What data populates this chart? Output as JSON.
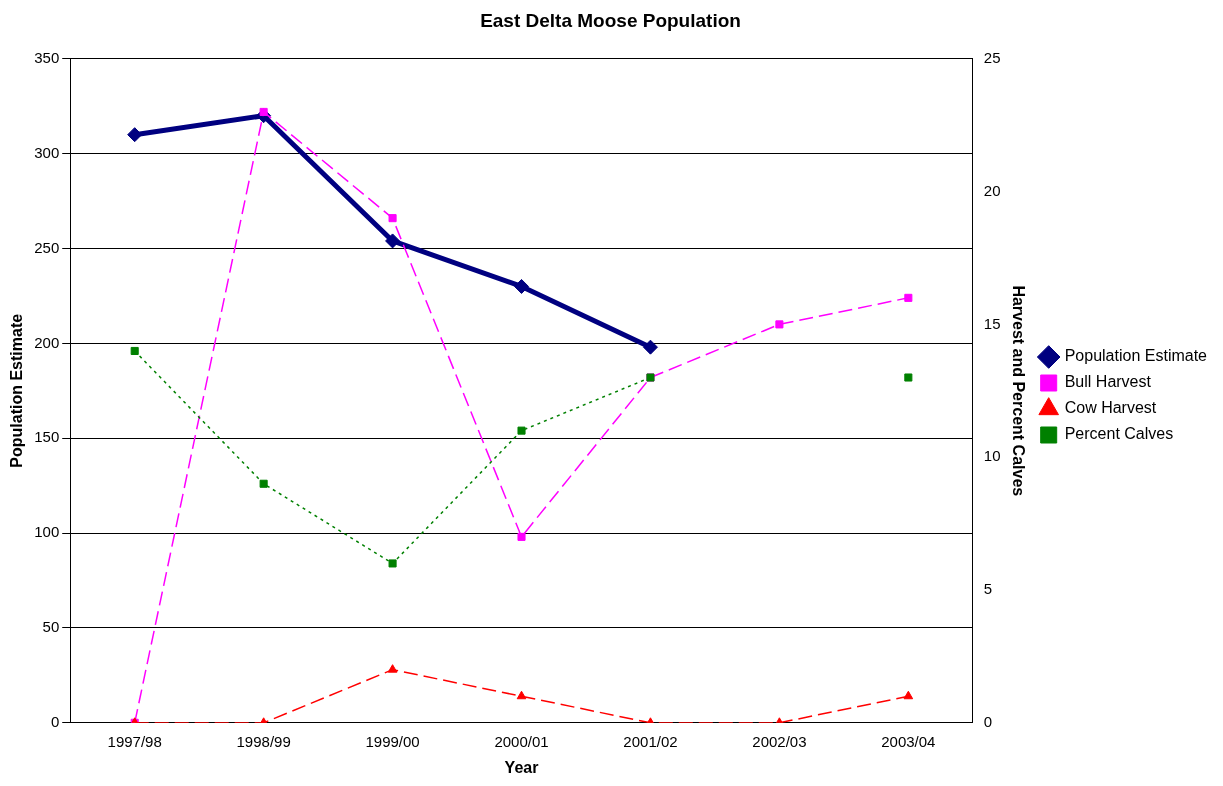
{
  "chart_data": {
    "type": "line",
    "title": "East Delta Moose Population",
    "xlabel": "Year",
    "ylabel": "Population Estimate",
    "y2label": "Harvest and Percent Calves",
    "categories": [
      "1997/98",
      "1998/99",
      "1999/00",
      "2000/01",
      "2001/02",
      "2002/03",
      "2003/04"
    ],
    "series": [
      {
        "name": "Population Estimate",
        "color": "#000080",
        "values": [
          310,
          320,
          254,
          230,
          198,
          null,
          null
        ],
        "marker": "diamond",
        "line_style": "solid"
      },
      {
        "name": "Bull Harvest",
        "color": "#ff00ff",
        "values": [
          0,
          23,
          19,
          7,
          13,
          15,
          16
        ],
        "axis": "y2",
        "marker": "square",
        "line_style": "dashed"
      },
      {
        "name": "Cow Harvest",
        "color": "#ff0000",
        "values": [
          0,
          0,
          2,
          1,
          0,
          0,
          1
        ],
        "axis": "y2",
        "marker": "triangle",
        "line_style": "dashed"
      },
      {
        "name": "Percent Calves",
        "color": "#008000",
        "values": [
          14,
          9,
          6,
          11,
          13,
          null,
          13
        ],
        "axis": "y2",
        "marker": "square",
        "line_style": "dotted"
      }
    ],
    "ylim": [
      0,
      350
    ],
    "yticks": [
      0,
      50,
      100,
      150,
      200,
      250,
      300,
      350
    ],
    "y2lim": [
      0,
      25
    ],
    "y2ticks": [
      0,
      5,
      10,
      15,
      20,
      25
    ],
    "grid": "y",
    "legend": "right"
  }
}
